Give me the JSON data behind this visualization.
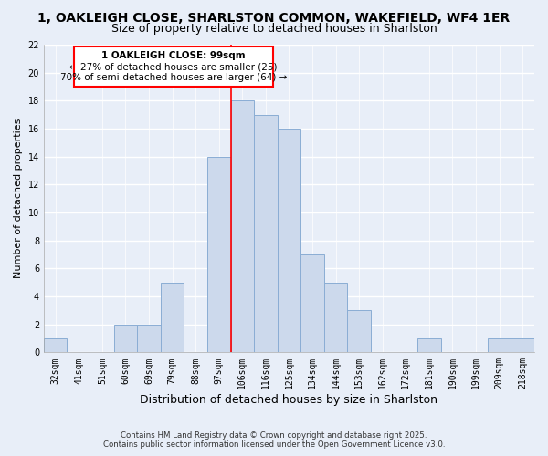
{
  "title": "1, OAKLEIGH CLOSE, SHARLSTON COMMON, WAKEFIELD, WF4 1ER",
  "subtitle": "Size of property relative to detached houses in Sharlston",
  "xlabel": "Distribution of detached houses by size in Sharlston",
  "ylabel": "Number of detached properties",
  "bar_labels": [
    "32sqm",
    "41sqm",
    "51sqm",
    "60sqm",
    "69sqm",
    "79sqm",
    "88sqm",
    "97sqm",
    "106sqm",
    "116sqm",
    "125sqm",
    "134sqm",
    "144sqm",
    "153sqm",
    "162sqm",
    "172sqm",
    "181sqm",
    "190sqm",
    "199sqm",
    "209sqm",
    "218sqm"
  ],
  "bar_values": [
    1,
    0,
    0,
    2,
    2,
    5,
    0,
    14,
    18,
    17,
    16,
    7,
    5,
    3,
    0,
    0,
    1,
    0,
    0,
    1,
    1
  ],
  "bar_color": "#ccd9ec",
  "bar_edge_color": "#8aadd4",
  "bar_width": 1.0,
  "ylim": [
    0,
    22
  ],
  "yticks": [
    0,
    2,
    4,
    6,
    8,
    10,
    12,
    14,
    16,
    18,
    20,
    22
  ],
  "reference_line_idx": 7,
  "annotation_title": "1 OAKLEIGH CLOSE: 99sqm",
  "annotation_line1": "← 27% of detached houses are smaller (25)",
  "annotation_line2": "70% of semi-detached houses are larger (64) →",
  "footer_line1": "Contains HM Land Registry data © Crown copyright and database right 2025.",
  "footer_line2": "Contains public sector information licensed under the Open Government Licence v3.0.",
  "bg_color": "#e8eef8",
  "grid_color": "#ffffff",
  "title_fontsize": 10,
  "subtitle_fontsize": 9,
  "ylabel_fontsize": 8,
  "xlabel_fontsize": 9
}
